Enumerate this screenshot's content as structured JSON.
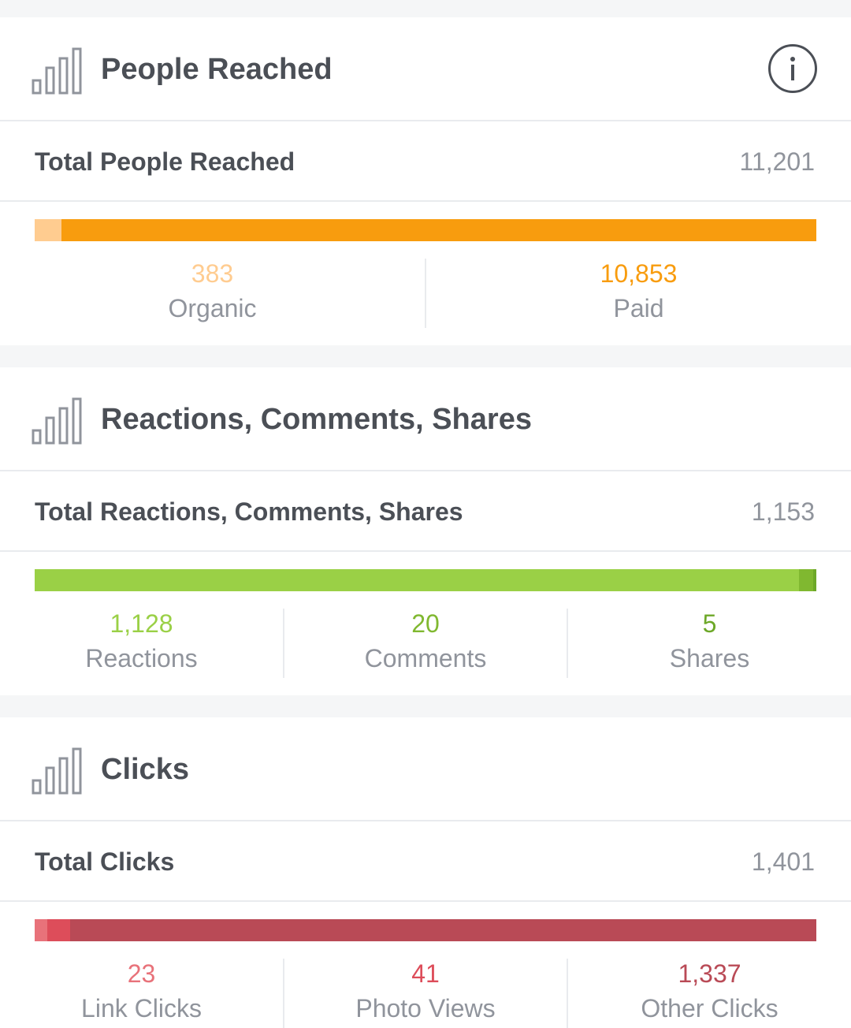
{
  "colors": {
    "orange_light": "#ffcc90",
    "orange": "#f89c0e",
    "green_light": "#9ad046",
    "green_mid": "#80b830",
    "green_dark": "#6da828",
    "red_light": "#e8727a",
    "red_mid": "#dd4d5a",
    "red": "#b94a56"
  },
  "people_reached": {
    "icon": "bar-chart-icon",
    "title": "People Reached",
    "info_icon": "info-icon",
    "total_label": "Total People Reached",
    "total_value": "11,201",
    "breakdown": [
      {
        "value": "383",
        "label": "Organic",
        "color": "#ffcc90"
      },
      {
        "value": "10,853",
        "label": "Paid",
        "color": "#f89c0e"
      }
    ]
  },
  "engagement": {
    "icon": "bar-chart-icon",
    "title": "Reactions, Comments, Shares",
    "total_label": "Total Reactions, Comments, Shares",
    "total_value": "1,153",
    "breakdown": [
      {
        "value": "1,128",
        "label": "Reactions",
        "color": "#9ad046"
      },
      {
        "value": "20",
        "label": "Comments",
        "color": "#80b830"
      },
      {
        "value": "5",
        "label": "Shares",
        "color": "#6da828"
      }
    ]
  },
  "clicks": {
    "icon": "bar-chart-icon",
    "title": "Clicks",
    "total_label": "Total Clicks",
    "total_value": "1,401",
    "breakdown": [
      {
        "value": "23",
        "label": "Link Clicks",
        "color": "#e8727a"
      },
      {
        "value": "41",
        "label": "Photo Views",
        "color": "#dd4d5a"
      },
      {
        "value": "1,337",
        "label": "Other Clicks",
        "color": "#b94a56"
      }
    ]
  }
}
